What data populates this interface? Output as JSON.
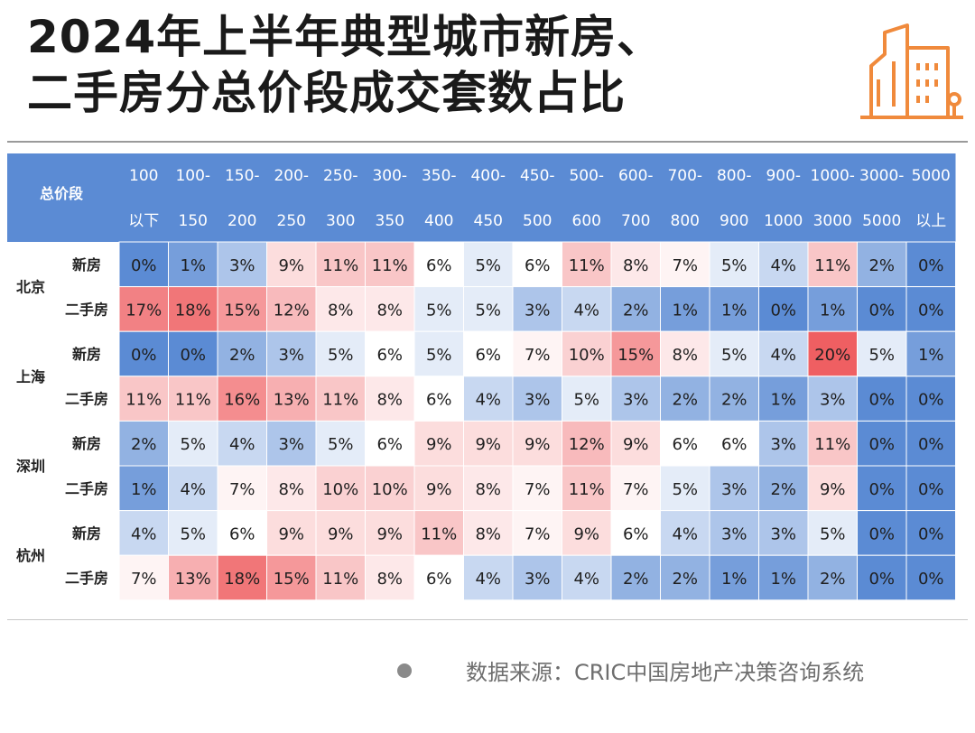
{
  "title": {
    "line1": "2024年上半年典型城市新房、",
    "line2": "二手房分总价段成交套数占比"
  },
  "source": "数据来源：CRIC中国房地产决策咨询系统",
  "icons": {
    "logo": "city-buildings-icon",
    "source_dot": "bullet-dot-icon"
  },
  "colors": {
    "header_bg": "#5b8bd4",
    "header_text": "#ffffff",
    "low": "#5b8bd4",
    "mid": "#ffffff",
    "high": "#ef5f62",
    "logo_color": "#f08a3c"
  },
  "chart_data": {
    "type": "heatmap",
    "title": "2024年上半年典型城市新房、二手房分总价段成交套数占比",
    "header_label": "总价段",
    "columns": [
      {
        "top": "100",
        "bottom": "以下"
      },
      {
        "top": "100-",
        "bottom": "150"
      },
      {
        "top": "150-",
        "bottom": "200"
      },
      {
        "top": "200-",
        "bottom": "250"
      },
      {
        "top": "250-",
        "bottom": "300"
      },
      {
        "top": "300-",
        "bottom": "350"
      },
      {
        "top": "350-",
        "bottom": "400"
      },
      {
        "top": "400-",
        "bottom": "450"
      },
      {
        "top": "450-",
        "bottom": "500"
      },
      {
        "top": "500-",
        "bottom": "600"
      },
      {
        "top": "600-",
        "bottom": "700"
      },
      {
        "top": "700-",
        "bottom": "800"
      },
      {
        "top": "800-",
        "bottom": "900"
      },
      {
        "top": "900-",
        "bottom": "1000"
      },
      {
        "top": "1000-",
        "bottom": "3000"
      },
      {
        "top": "3000-",
        "bottom": "5000"
      },
      {
        "top": "5000",
        "bottom": "以上"
      }
    ],
    "cities": [
      {
        "name": "北京",
        "rows": [
          {
            "type": "新房",
            "values": [
              0,
              1,
              3,
              9,
              11,
              11,
              6,
              5,
              6,
              11,
              8,
              7,
              5,
              4,
              11,
              2,
              0
            ]
          },
          {
            "type": "二手房",
            "values": [
              17,
              18,
              15,
              12,
              8,
              8,
              5,
              5,
              3,
              4,
              2,
              1,
              1,
              0,
              1,
              0,
              0
            ]
          }
        ]
      },
      {
        "name": "上海",
        "rows": [
          {
            "type": "新房",
            "values": [
              0,
              0,
              2,
              3,
              5,
              6,
              5,
              6,
              7,
              10,
              15,
              8,
              5,
              4,
              20,
              5,
              1
            ]
          },
          {
            "type": "二手房",
            "values": [
              11,
              11,
              16,
              13,
              11,
              8,
              6,
              4,
              3,
              5,
              3,
              2,
              2,
              1,
              3,
              0,
              0
            ]
          }
        ]
      },
      {
        "name": "深圳",
        "rows": [
          {
            "type": "新房",
            "values": [
              2,
              5,
              4,
              3,
              5,
              6,
              9,
              9,
              9,
              12,
              9,
              6,
              6,
              3,
              11,
              0,
              0
            ]
          },
          {
            "type": "二手房",
            "values": [
              1,
              4,
              7,
              8,
              10,
              10,
              9,
              8,
              7,
              11,
              7,
              5,
              3,
              2,
              9,
              0,
              0
            ]
          }
        ]
      },
      {
        "name": "杭州",
        "rows": [
          {
            "type": "新房",
            "values": [
              4,
              5,
              6,
              9,
              9,
              9,
              11,
              8,
              7,
              9,
              6,
              4,
              3,
              3,
              5,
              0,
              0
            ]
          },
          {
            "type": "二手房",
            "values": [
              7,
              13,
              18,
              15,
              11,
              8,
              6,
              4,
              3,
              4,
              2,
              2,
              1,
              1,
              2,
              0,
              0
            ]
          }
        ]
      }
    ],
    "value_suffix": "%"
  }
}
